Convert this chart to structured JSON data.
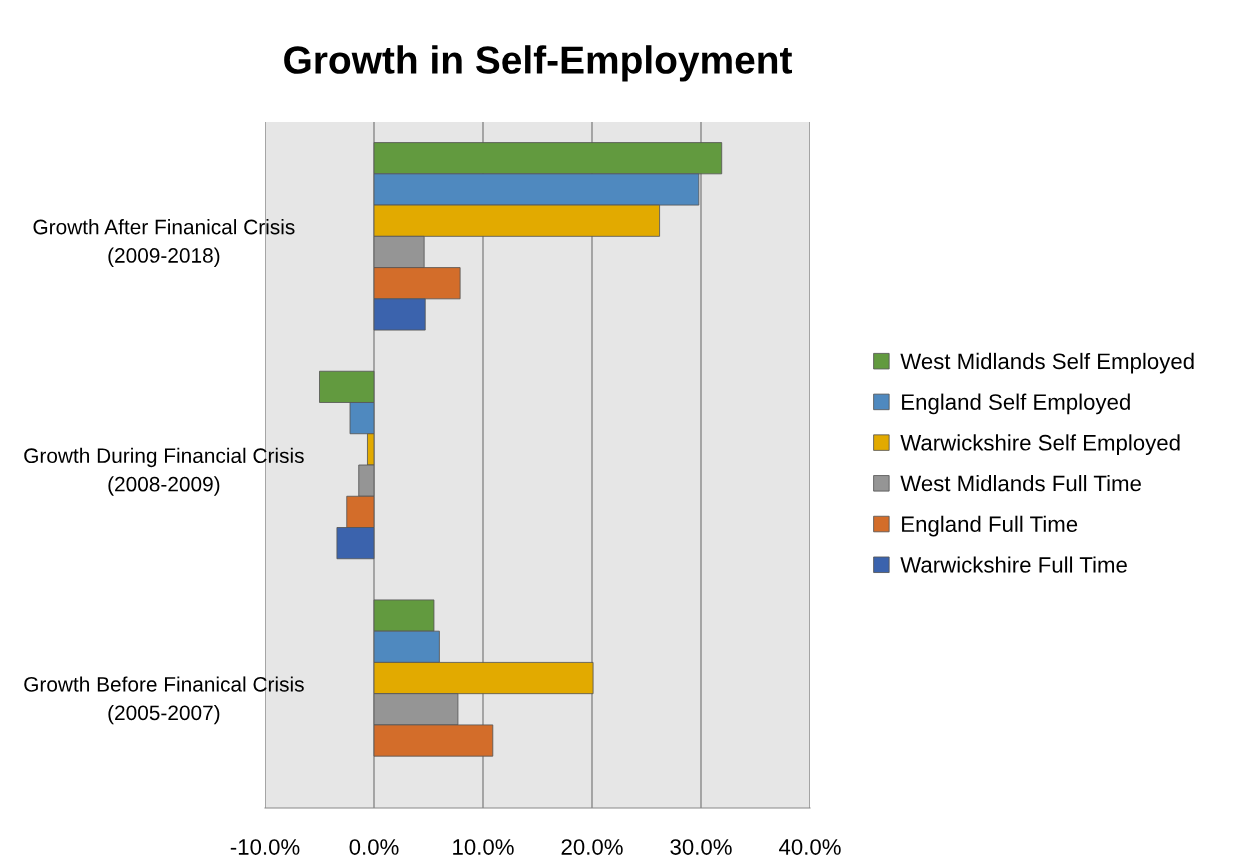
{
  "chart_data": {
    "type": "bar",
    "orientation": "horizontal",
    "title": "Growth in Self-Employment",
    "categories": [
      "Growth After Finanical Crisis\n(2009-2018)",
      "Growth During Financial Crisis\n(2008-2009)",
      "Growth Before Finanical Crisis\n(2005-2007)"
    ],
    "series": [
      {
        "name": "West Midlands Self Employed",
        "color": "#629a3f",
        "values": [
          31.9,
          -5.0,
          5.5
        ]
      },
      {
        "name": "England Self Employed",
        "color": "#4f89bf",
        "values": [
          29.8,
          -2.2,
          6.0
        ]
      },
      {
        "name": "Warwickshire Self Employed",
        "color": "#e2aa00",
        "values": [
          26.2,
          -0.6,
          20.1
        ]
      },
      {
        "name": "West Midlands Full Time",
        "color": "#959595",
        "values": [
          4.6,
          -1.4,
          7.7
        ]
      },
      {
        "name": "England Full Time",
        "color": "#d36d2a",
        "values": [
          7.9,
          -2.5,
          10.9
        ]
      },
      {
        "name": "Warwickshire Full Time",
        "color": "#3b63ad",
        "values": [
          4.7,
          -3.4,
          null
        ]
      }
    ],
    "xlim": [
      -10,
      40
    ],
    "xticks": [
      {
        "value": -10,
        "label": "-10.0%"
      },
      {
        "value": 0,
        "label": "0.0%"
      },
      {
        "value": 10,
        "label": "10.0%"
      },
      {
        "value": 20,
        "label": "20.0%"
      },
      {
        "value": 30,
        "label": "30.0%"
      },
      {
        "value": 40,
        "label": "40.0%"
      }
    ],
    "grid": "x",
    "legend": "right"
  }
}
